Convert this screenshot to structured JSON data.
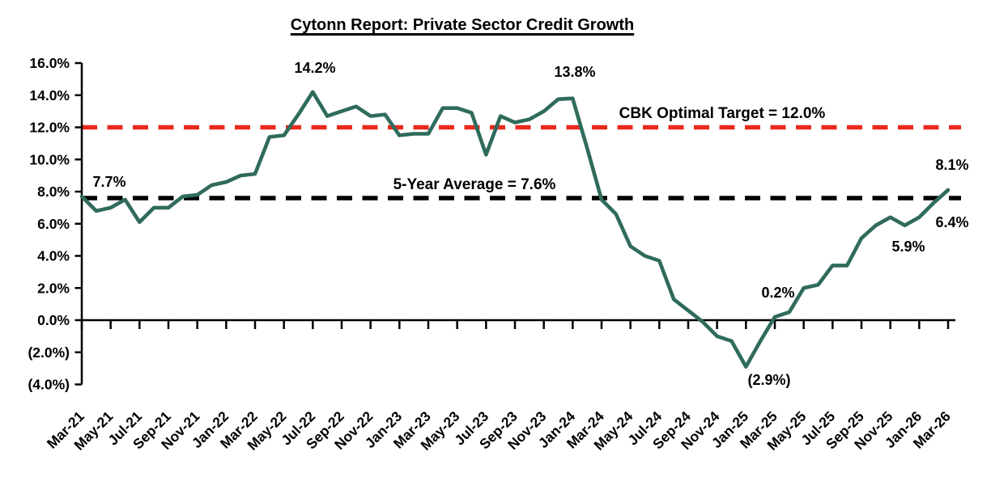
{
  "title": "Cytonn Report: Private Sector Credit Growth",
  "colors": {
    "series_green": "#2F6B5C",
    "cbk_target_red": "#EA2A1C",
    "average_black": "#000000",
    "axis_black": "#000000",
    "background": "#FFFFFF"
  },
  "chart_data": {
    "type": "line",
    "title": "Cytonn Report: Private Sector Credit Growth",
    "grid": false,
    "legend": "none",
    "ylim": [
      -4,
      16
    ],
    "ytick_step": 2,
    "ytick_labels": [
      "(4.0%)",
      "(2.0%)",
      "0.0%",
      "2.0%",
      "4.0%",
      "6.0%",
      "8.0%",
      "10.0%",
      "12.0%",
      "14.0%",
      "16.0%"
    ],
    "x_tick_labels": [
      "Mar-21",
      "May-21",
      "Jul-21",
      "Sep-21",
      "Nov-21",
      "Jan-22",
      "Mar-22",
      "May-22",
      "Jul-22",
      "Sep-22",
      "Nov-22",
      "Jan-23",
      "Mar-23",
      "May-23",
      "Jul-23",
      "Sep-23",
      "Nov-23",
      "Jan-24",
      "Mar-24",
      "May-24",
      "Jul-24",
      "Sep-24",
      "Nov-24",
      "Jan-25",
      "Mar-25",
      "May-25",
      "Jul-25",
      "Sep-25",
      "Nov-25",
      "Jan-26",
      "Mar-26"
    ],
    "x": [
      "Mar-21",
      "Apr-21",
      "May-21",
      "Jun-21",
      "Jul-21",
      "Aug-21",
      "Sep-21",
      "Oct-21",
      "Nov-21",
      "Dec-21",
      "Jan-22",
      "Feb-22",
      "Mar-22",
      "Apr-22",
      "May-22",
      "Jun-22",
      "Jul-22",
      "Aug-22",
      "Sep-22",
      "Oct-22",
      "Nov-22",
      "Dec-22",
      "Jan-23",
      "Feb-23",
      "Mar-23",
      "Apr-23",
      "May-23",
      "Jun-23",
      "Jul-23",
      "Aug-23",
      "Sep-23",
      "Oct-23",
      "Nov-23",
      "Dec-23",
      "Jan-24",
      "Feb-24",
      "Mar-24",
      "Apr-24",
      "May-24",
      "Jun-24",
      "Jul-24",
      "Aug-24",
      "Sep-24",
      "Oct-24",
      "Nov-24",
      "Dec-24",
      "Jan-25",
      "Feb-25",
      "Mar-25",
      "Apr-25",
      "May-25",
      "Jun-25",
      "Jul-25",
      "Aug-25",
      "Sep-25",
      "Oct-25",
      "Nov-25",
      "Dec-25",
      "Jan-26",
      "Feb-26",
      "Mar-26"
    ],
    "series": [
      {
        "name": "Private Sector Credit Growth",
        "color": "#2F6B5C",
        "values": [
          7.7,
          6.8,
          7.0,
          7.5,
          6.1,
          7.0,
          7.0,
          7.7,
          7.8,
          8.4,
          8.6,
          9.0,
          9.1,
          11.4,
          11.5,
          12.8,
          14.2,
          12.7,
          13.0,
          13.3,
          12.7,
          12.8,
          11.5,
          11.6,
          11.6,
          13.2,
          13.2,
          12.9,
          10.3,
          12.7,
          12.3,
          12.5,
          13.0,
          13.75,
          13.8,
          10.7,
          7.5,
          6.6,
          4.6,
          4.0,
          3.7,
          1.3,
          0.6,
          -0.1,
          -1.0,
          -1.3,
          -2.9,
          -1.3,
          0.2,
          0.5,
          2.0,
          2.2,
          3.4,
          3.4,
          5.1,
          5.9,
          6.4,
          5.9,
          6.4,
          7.3,
          8.1
        ]
      }
    ],
    "reference_lines": [
      {
        "id": "cbk-target",
        "label": "CBK Optimal Target = 12.0%",
        "value": 12.0,
        "color": "#EA2A1C",
        "style": "dashed"
      },
      {
        "id": "5yr-average",
        "label": "5-Year Average = 7.6%",
        "value": 7.6,
        "color": "#000000",
        "style": "dashed"
      }
    ],
    "point_labels": [
      {
        "month": "Mar-21",
        "text": "7.7%"
      },
      {
        "month": "Jul-22",
        "text": "14.2%"
      },
      {
        "month": "Jan-24",
        "text": "13.8%"
      },
      {
        "month": "Jan-25",
        "text": "(2.9%)"
      },
      {
        "month": "Mar-25",
        "text": "0.2%"
      },
      {
        "month": "Dec-25",
        "text": "5.9%"
      },
      {
        "month": "Jan-26",
        "text": "6.4%"
      },
      {
        "month": "Mar-26",
        "text": "8.1%"
      }
    ]
  }
}
